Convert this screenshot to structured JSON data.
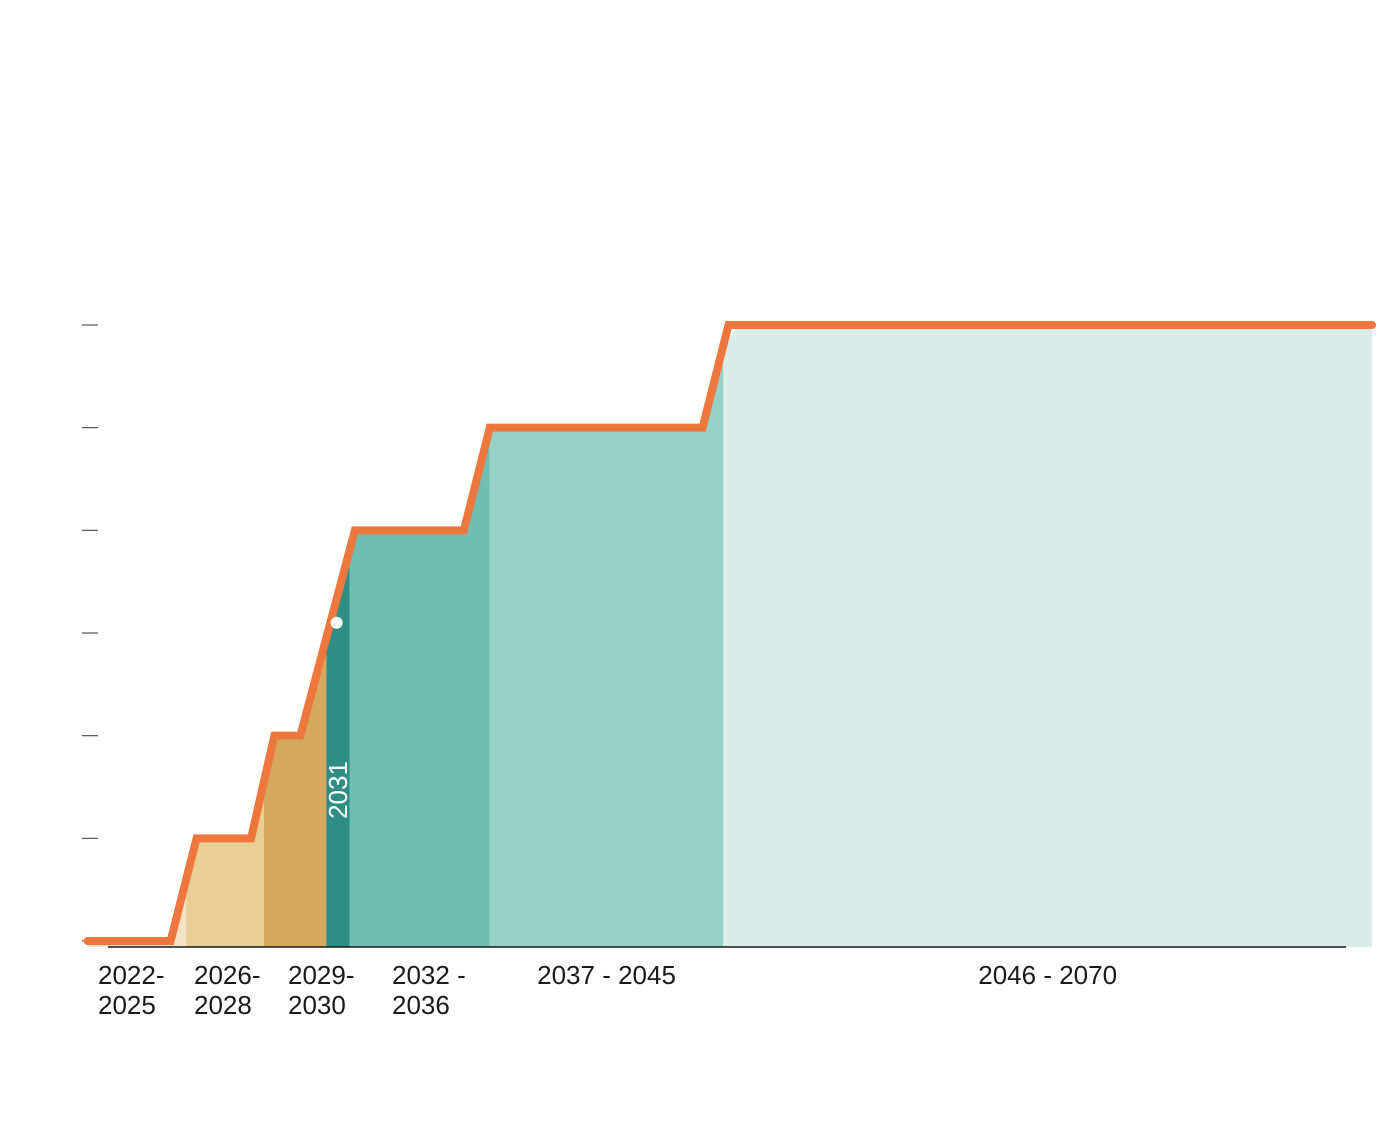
{
  "chart_data": {
    "type": "area",
    "title": "",
    "xlabel": "",
    "ylabel": "",
    "grid": false,
    "legend": "none",
    "ylim": [
      0,
      6
    ],
    "y_ticks": [
      0,
      1,
      2,
      3,
      4,
      5,
      6
    ],
    "y_tick_labels_shown": false,
    "periods": [
      {
        "label": "2022-\n2025",
        "start": 2022,
        "end": 2025.8,
        "level": 0,
        "color": "#f1e3c3"
      },
      {
        "label": "2026-\n2028",
        "start": 2025.8,
        "end": 2028.8,
        "level": 1,
        "color": "#e8cf96"
      },
      {
        "label": "2029-\n2030",
        "start": 2028.8,
        "end": 2031.2,
        "level": 2,
        "color": "#d4a95e"
      },
      {
        "label": "2032 -\n2036",
        "start": 2032.1,
        "end": 2037.5,
        "level": 4,
        "color": "#6fbeb2"
      },
      {
        "label": "2037 - 2045",
        "start": 2037.5,
        "end": 2046.5,
        "level": 5,
        "color": "#96d0c6"
      },
      {
        "label": "2046 - 2070",
        "start": 2046.5,
        "end": 2071.5,
        "level": 6,
        "color": "#daedea"
      }
    ],
    "highlight": {
      "label": "2031",
      "start": 2031.2,
      "end": 2032.1,
      "color": "#2e8e84"
    },
    "marker_point": {
      "x": 2031.6,
      "y": 3.1
    },
    "step_line": {
      "color": "#ee773d",
      "points": [
        [
          2022,
          0
        ],
        [
          2025.2,
          0
        ],
        [
          2026.2,
          1
        ],
        [
          2028.3,
          1
        ],
        [
          2029.2,
          2
        ],
        [
          2030.2,
          2
        ],
        [
          2032.3,
          4
        ],
        [
          2036.5,
          4
        ],
        [
          2037.5,
          5
        ],
        [
          2045.7,
          5
        ],
        [
          2046.7,
          6
        ],
        [
          2071.5,
          6
        ]
      ]
    },
    "x_domain": [
      2021.4,
      2072
    ]
  }
}
